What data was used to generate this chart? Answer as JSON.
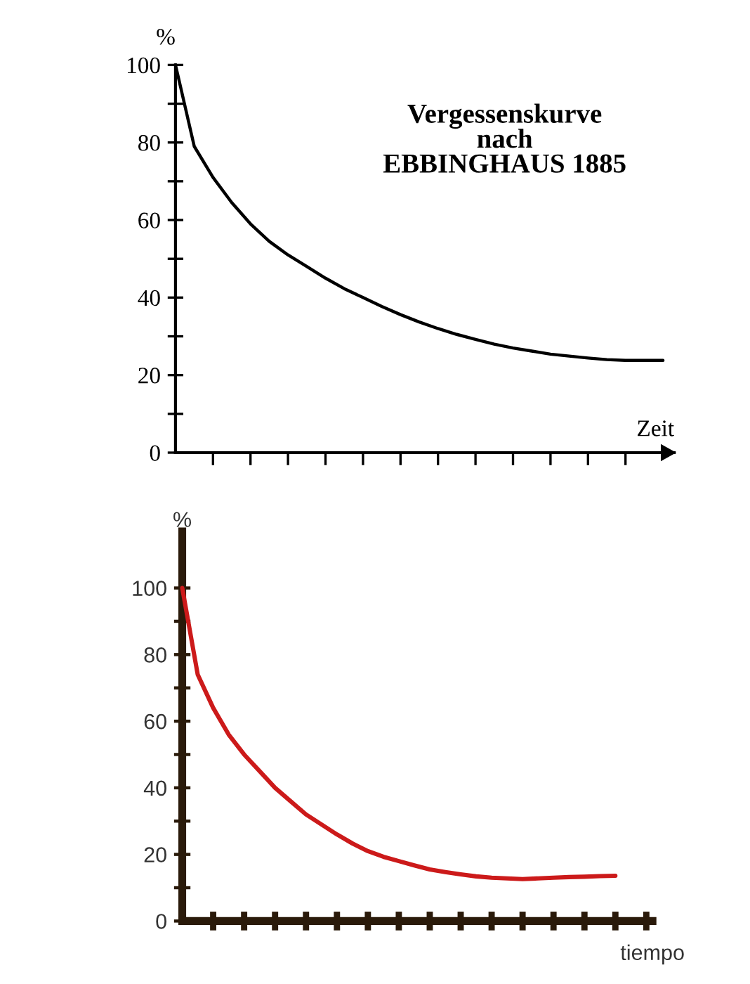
{
  "chart_data": [
    {
      "type": "line",
      "title": "Vergessenskurve\nnach\nEBBINGHAUS 1885",
      "xlabel": "Zeit",
      "ylabel": "%",
      "categories": [
        null,
        null,
        null,
        null,
        null,
        null,
        null,
        null,
        null,
        null,
        null,
        null,
        null,
        null,
        null,
        null,
        null,
        null,
        null,
        null,
        null,
        null,
        null,
        null,
        null,
        null,
        null
      ],
      "series": [
        {
          "color": "#000000",
          "values": [
            100,
            79,
            71,
            64.5,
            59,
            54.5,
            51,
            48,
            45,
            42.3,
            40,
            37.7,
            35.6,
            33.7,
            32,
            30.5,
            29.2,
            28,
            27,
            26.2,
            25.4,
            24.9,
            24.4,
            24,
            23.8,
            23.8,
            23.8
          ]
        }
      ],
      "ylim": [
        0,
        100
      ],
      "yticks": [
        0,
        {
          "value": 10,
          "label": null
        },
        20,
        {
          "value": 30,
          "label": null
        },
        40,
        {
          "value": 50,
          "label": null
        },
        60,
        {
          "value": 70,
          "label": null
        },
        80,
        {
          "value": 90,
          "label": null
        },
        100
      ],
      "grid": false,
      "legend": false,
      "marker": "none",
      "line_style": "solid"
    },
    {
      "type": "line",
      "xlabel": "tiempo",
      "ylabel": "%",
      "categories": [
        null,
        null,
        null,
        null,
        null,
        null,
        null,
        null,
        null,
        null,
        null,
        null,
        null,
        null,
        null,
        null,
        null,
        null,
        null,
        null,
        null,
        null,
        null,
        null,
        null,
        null,
        null,
        null,
        null,
        null,
        null
      ],
      "series": [
        {
          "color": "#cc1a1a",
          "values": [
            100,
            74,
            64,
            56,
            50,
            45,
            40,
            36,
            32,
            29,
            26,
            23.3,
            21,
            19.3,
            18,
            16.7,
            15.5,
            14.7,
            14,
            13.4,
            13,
            12.8,
            12.6,
            12.8,
            13,
            13.2,
            13.3,
            13.5,
            13.6,
            null,
            null
          ]
        }
      ],
      "ylim": [
        0,
        117
      ],
      "yticks": [
        0,
        {
          "value": 10,
          "label": null
        },
        20,
        {
          "value": 30,
          "label": null
        },
        40,
        {
          "value": 50,
          "label": null
        },
        60,
        {
          "value": 70,
          "label": null
        },
        80,
        {
          "value": 90,
          "label": null
        },
        100
      ],
      "grid": false,
      "legend": false,
      "marker": "none",
      "line_style": "solid"
    }
  ]
}
